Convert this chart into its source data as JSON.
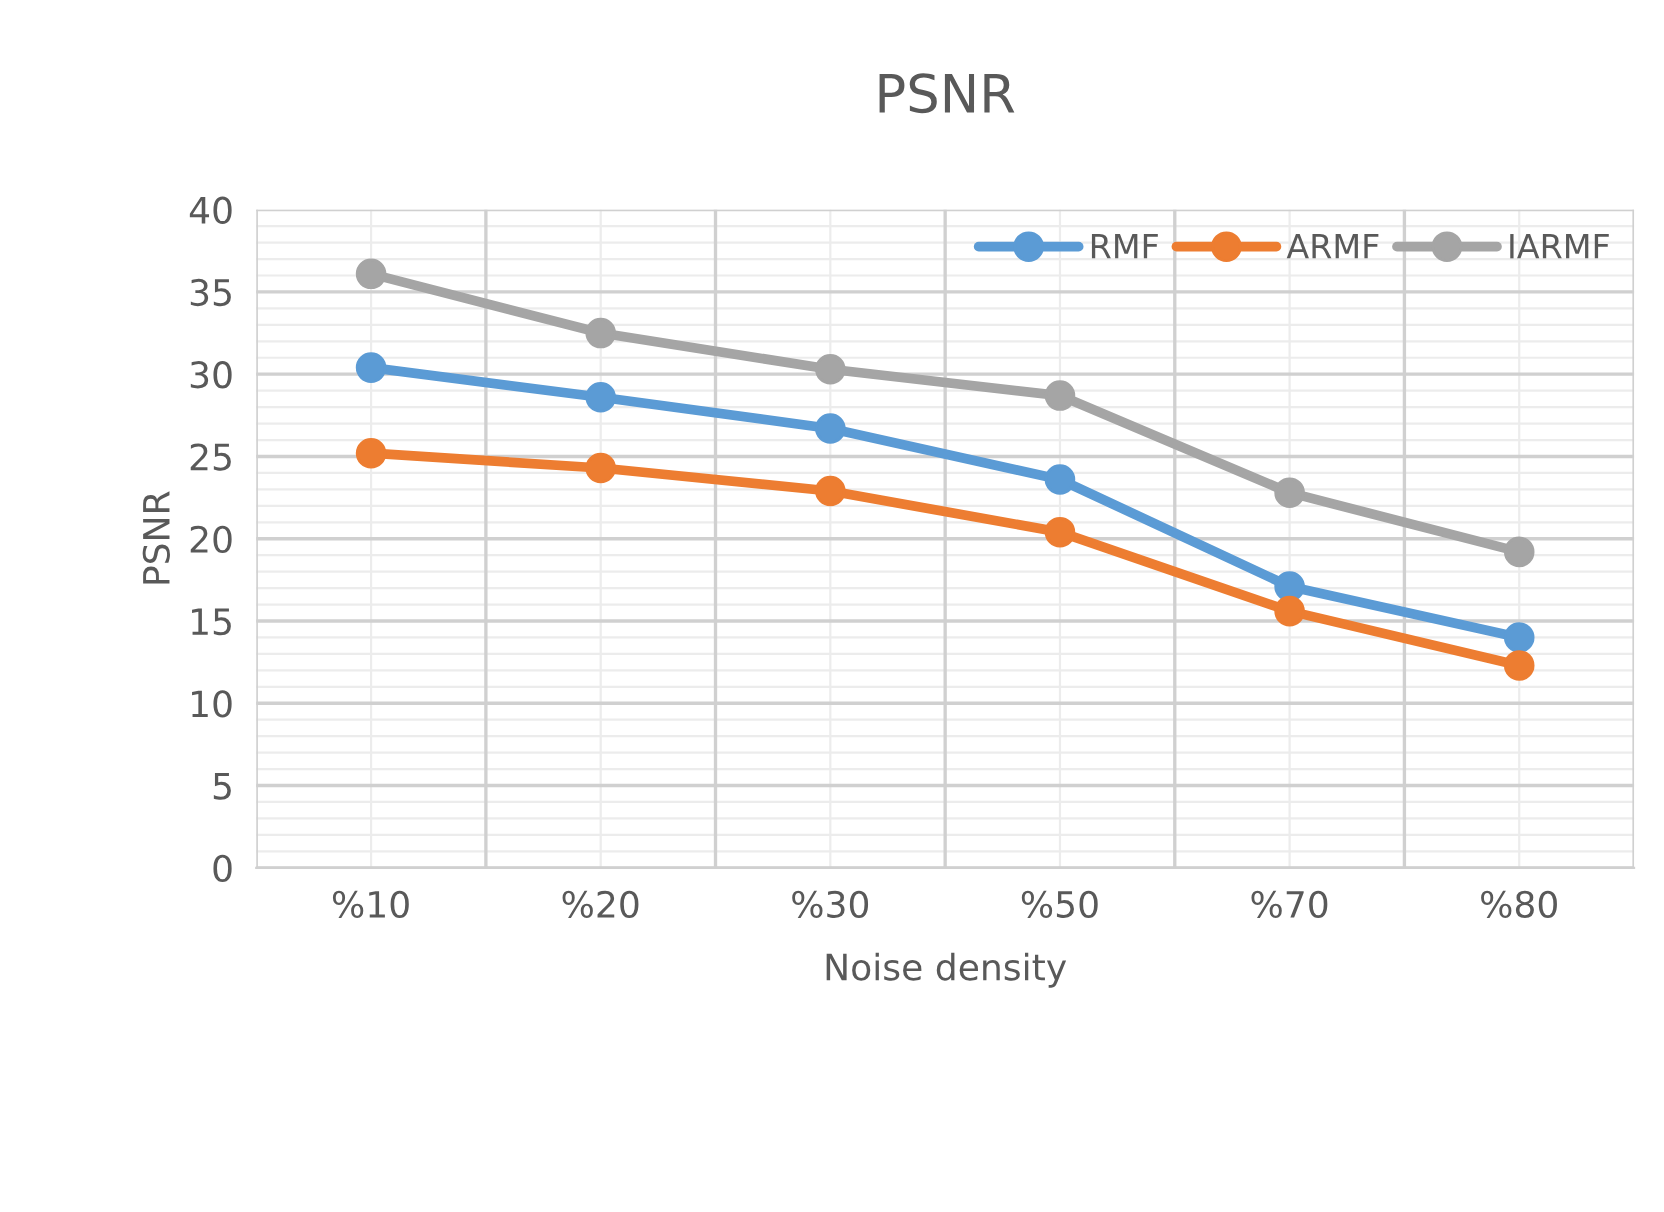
{
  "chart_data": {
    "type": "line",
    "title": "PSNR",
    "xlabel": "Noise density",
    "ylabel": "PSNR",
    "categories": [
      "%10",
      "%20",
      "%30",
      "%50",
      "%70",
      "%80"
    ],
    "series": [
      {
        "name": "RMF",
        "color": "#5b9bd5",
        "values": [
          30.4,
          28.6,
          26.7,
          23.6,
          17.1,
          14.0
        ]
      },
      {
        "name": "ARMF",
        "color": "#ed7d31",
        "values": [
          25.2,
          24.3,
          22.9,
          20.4,
          15.6,
          12.3
        ]
      },
      {
        "name": "IARMF",
        "color": "#a5a5a5",
        "values": [
          36.1,
          32.5,
          30.3,
          28.7,
          22.8,
          19.2
        ]
      }
    ],
    "ylim": [
      0,
      40
    ],
    "yticks": [
      0,
      5,
      10,
      15,
      20,
      25,
      30,
      35,
      40
    ],
    "grid": true,
    "legend": "top right",
    "marker": "circle",
    "line_style": "solid"
  }
}
